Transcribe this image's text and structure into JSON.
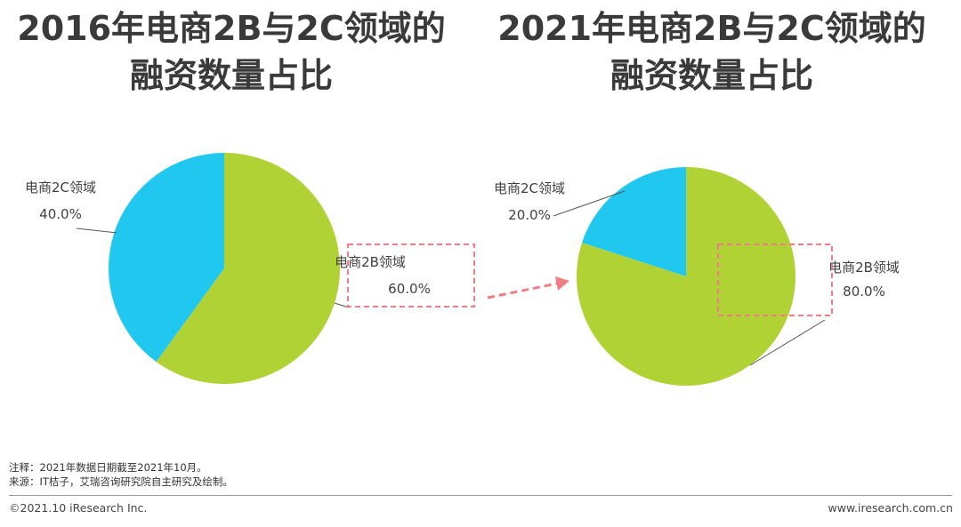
{
  "chart_data": [
    {
      "type": "pie",
      "title": "2016年电商2B与2C领域的融资数量占比",
      "slices": [
        {
          "label": "电商2B领域",
          "value": 60.0,
          "value_label": "60.0%",
          "color": "#b1d234"
        },
        {
          "label": "电商2C领域",
          "value": 40.0,
          "value_label": "40.0%",
          "color": "#20c8f0"
        }
      ]
    },
    {
      "type": "pie",
      "title": "2021年电商2B与2C领域的融资数量占比",
      "slices": [
        {
          "label": "电商2B领域",
          "value": 80.0,
          "value_label": "80.0%",
          "color": "#b1d234"
        },
        {
          "label": "电商2C领域",
          "value": 20.0,
          "value_label": "20.0%",
          "color": "#20c8f0"
        }
      ]
    }
  ],
  "titles": {
    "left": {
      "line1": "2016年电商2B与2C领域的",
      "line2": "融资数量占比"
    },
    "right": {
      "line1": "2021年电商2B与2C领域的",
      "line2": "融资数量占比"
    }
  },
  "notes": {
    "note": "注释：2021年数据日期截至2021年10月。",
    "source": "来源：IT桔子，艾瑞咨询研究院自主研究及绘制。"
  },
  "footer": {
    "copyright": "©2021.10 iResearch Inc.",
    "website": "www.iresearch.com.cn"
  },
  "highlight_color": "#ef7d86"
}
